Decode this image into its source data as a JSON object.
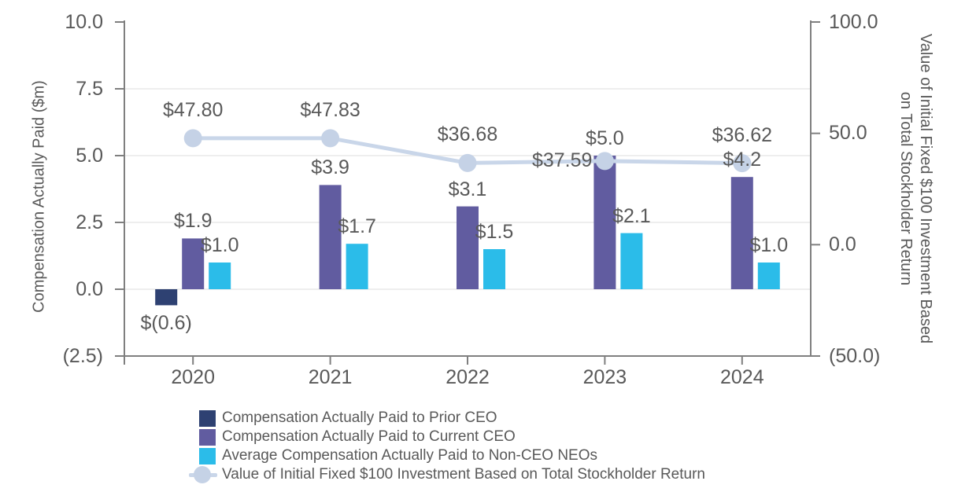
{
  "chart_data": {
    "type": "combo-bar-line",
    "categories": [
      "2020",
      "2021",
      "2022",
      "2023",
      "2024"
    ],
    "left_axis": {
      "title": "Compensation Actually Paid ($m)",
      "tick_labels": [
        "10.0",
        "7.5",
        "5.0",
        "2.5",
        "0.0",
        "(2.5)"
      ],
      "tick_values": [
        10,
        7.5,
        5,
        2.5,
        0,
        -2.5
      ],
      "range": [
        -2.5,
        10
      ],
      "grid": true
    },
    "right_axis": {
      "title_lines": [
        "Value of Initial Fixed $100 Investment Based",
        "on Total Stockholder Return"
      ],
      "tick_labels": [
        "100.0",
        "50.0",
        "0.0",
        "(50.0)"
      ],
      "tick_values": [
        100,
        50,
        0,
        -50
      ],
      "range": [
        -50,
        100
      ]
    },
    "bar_series": [
      {
        "name": "Compensation Actually Paid to Prior CEO",
        "color": "#2E4172",
        "values": [
          -0.6,
          null,
          null,
          null,
          null
        ],
        "labels": [
          "$(0.6)",
          "",
          "",
          "",
          ""
        ]
      },
      {
        "name": "Compensation Actually Paid to Current CEO",
        "color": "#615CA0",
        "values": [
          1.9,
          3.9,
          3.1,
          5.0,
          4.2
        ],
        "labels": [
          "$1.9",
          "$3.9",
          "$3.1",
          "$5.0",
          "$4.2"
        ]
      },
      {
        "name": "Average Compensation Actually Paid to Non-CEO NEOs",
        "color": "#2BBCE9",
        "values": [
          1.0,
          1.7,
          1.5,
          2.1,
          1.0
        ],
        "labels": [
          "$1.0",
          "$1.7",
          "$1.5",
          "$2.1",
          "$1.0"
        ]
      }
    ],
    "line_series": {
      "name": "Value of Initial Fixed $100 Investment Based on Total Stockholder Return",
      "line_color": "#C9D6E9",
      "marker_color": "#C5D2E6",
      "values": [
        47.8,
        47.83,
        36.68,
        37.59,
        36.62
      ],
      "labels": [
        "$47.80",
        "$47.83",
        "$36.68",
        "$37.59",
        "$36.62"
      ],
      "label_positions": [
        "above",
        "above",
        "above",
        "left",
        "above"
      ]
    },
    "colors": {
      "text": "#595959",
      "axis": "#7F7F7F",
      "grid": "#E9E9E9"
    }
  },
  "legend": {
    "items": [
      {
        "label": "Compensation Actually Paid to Prior CEO",
        "swatch": "square",
        "color": "#2E4172"
      },
      {
        "label": "Compensation Actually Paid to Current CEO",
        "swatch": "square",
        "color": "#615CA0"
      },
      {
        "label": "Average Compensation Actually Paid to Non-CEO NEOs",
        "swatch": "square",
        "color": "#2BBCE9"
      },
      {
        "label": "Value of Initial Fixed $100 Investment Based on Total Stockholder Return",
        "swatch": "line-marker",
        "color": "#C9D6E9",
        "marker_color": "#C5D2E6"
      }
    ]
  }
}
